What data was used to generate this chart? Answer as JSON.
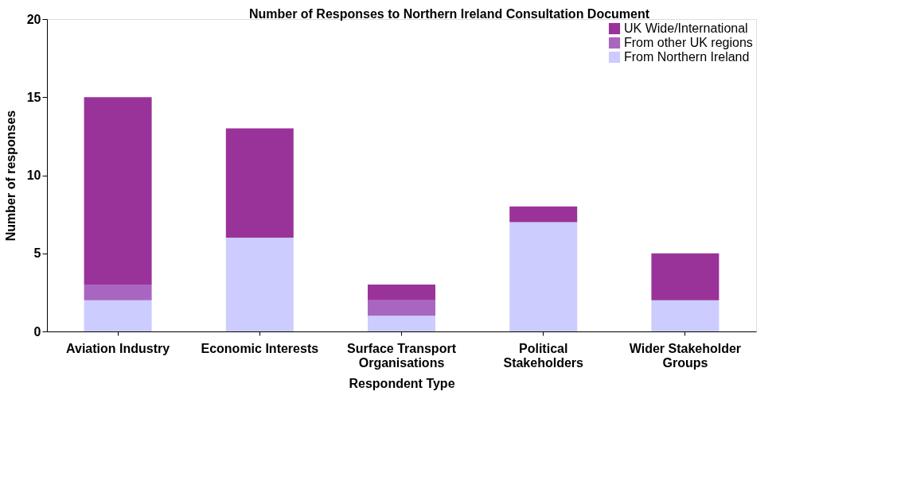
{
  "chart_data": {
    "type": "bar",
    "stacked": true,
    "title": "Number of Responses to Northern Ireland Consultation Document",
    "xlabel": "Respondent Type",
    "ylabel": "Number of responses",
    "categories": [
      "Aviation Industry",
      "Economic Interests",
      "Surface Transport Organisations",
      "Political Stakeholders",
      "Wider Stakeholder Groups"
    ],
    "series": [
      {
        "name": "From Northern Ireland",
        "color": "#ccccff",
        "values": [
          2,
          6,
          1,
          7,
          2
        ]
      },
      {
        "name": "From other UK regions",
        "color": "#a966c0",
        "values": [
          1,
          0,
          1,
          0,
          0
        ]
      },
      {
        "name": "UK Wide/International",
        "color": "#993399",
        "values": [
          12,
          7,
          1,
          1,
          3
        ]
      }
    ],
    "ylim": [
      0,
      20
    ],
    "yticks": [
      0,
      5,
      10,
      15,
      20
    ],
    "grid": false,
    "legend": "top right"
  }
}
